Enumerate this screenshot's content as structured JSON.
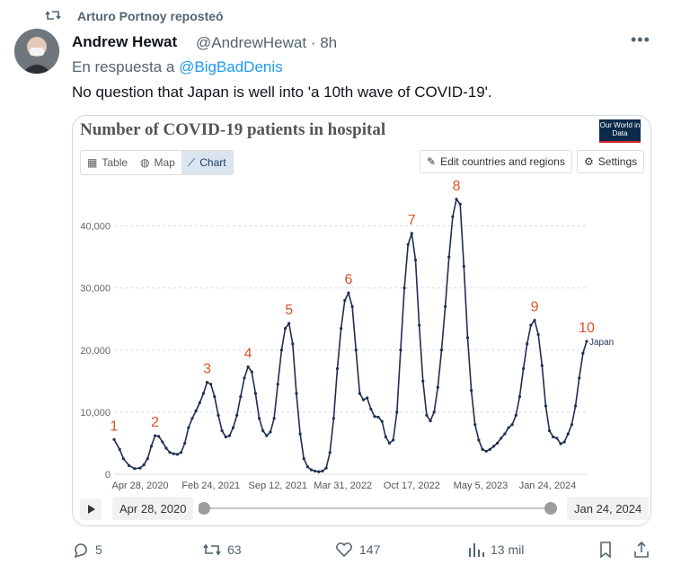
{
  "repost": {
    "label": "Arturo Portnoy reposteó"
  },
  "tweet": {
    "name": "Andrew Hewat",
    "handle": "@AndrewHewat · 8h",
    "reply_prefix": "En respuesta a",
    "reply_to": "@BigBadDenis",
    "text": "No question that Japan is well into 'a 10th wave of COVID-19'."
  },
  "card": {
    "title": "Number of COVID-19 patients in hospital",
    "logo": "Our World in Data",
    "tabs": [
      "Table",
      "Map",
      "Chart"
    ],
    "active_tab": "Chart",
    "edit_button": "Edit countries and regions",
    "settings_button": "Settings",
    "start_date": "Apr 28, 2020",
    "end_date": "Jan 24, 2024"
  },
  "actions": {
    "replies": "5",
    "reposts": "63",
    "likes": "147",
    "views": "13 mil"
  },
  "colors": {
    "line": "#1f2f52",
    "wave_label": "#d9532b",
    "link": "#1d9bf0"
  },
  "chart_data": {
    "type": "line",
    "title": "Number of COVID-19 patients in hospital",
    "series": [
      {
        "name": "Japan",
        "points": [
          [
            0,
            5600
          ],
          [
            0.3,
            4000
          ],
          [
            0.5,
            2500
          ],
          [
            0.8,
            1400
          ],
          [
            1.1,
            900
          ],
          [
            1.4,
            1000
          ],
          [
            1.6,
            1500
          ],
          [
            1.8,
            2500
          ],
          [
            2,
            4500
          ],
          [
            2.2,
            6200
          ],
          [
            2.4,
            6100
          ],
          [
            2.6,
            5200
          ],
          [
            2.8,
            4200
          ],
          [
            3,
            3500
          ],
          [
            3.2,
            3300
          ],
          [
            3.4,
            3200
          ],
          [
            3.6,
            3500
          ],
          [
            3.8,
            5000
          ],
          [
            4,
            7500
          ],
          [
            4.2,
            9000
          ],
          [
            4.4,
            10200
          ],
          [
            4.6,
            11500
          ],
          [
            4.8,
            13000
          ],
          [
            5,
            14800
          ],
          [
            5.2,
            14500
          ],
          [
            5.4,
            12500
          ],
          [
            5.6,
            9500
          ],
          [
            5.8,
            7000
          ],
          [
            6,
            6000
          ],
          [
            6.2,
            6200
          ],
          [
            6.4,
            7500
          ],
          [
            6.6,
            9500
          ],
          [
            6.8,
            12500
          ],
          [
            7,
            15500
          ],
          [
            7.2,
            17300
          ],
          [
            7.4,
            16500
          ],
          [
            7.6,
            13000
          ],
          [
            7.8,
            9000
          ],
          [
            8,
            7000
          ],
          [
            8.2,
            6200
          ],
          [
            8.4,
            6800
          ],
          [
            8.6,
            9000
          ],
          [
            8.8,
            14500
          ],
          [
            9,
            20000
          ],
          [
            9.2,
            23500
          ],
          [
            9.4,
            24300
          ],
          [
            9.6,
            21000
          ],
          [
            9.8,
            13000
          ],
          [
            10,
            6500
          ],
          [
            10.2,
            2500
          ],
          [
            10.4,
            1200
          ],
          [
            10.6,
            700
          ],
          [
            10.8,
            500
          ],
          [
            11,
            400
          ],
          [
            11.2,
            500
          ],
          [
            11.4,
            1000
          ],
          [
            11.6,
            3500
          ],
          [
            11.8,
            9000
          ],
          [
            12,
            17000
          ],
          [
            12.2,
            23500
          ],
          [
            12.4,
            28000
          ],
          [
            12.6,
            29200
          ],
          [
            12.8,
            27000
          ],
          [
            13,
            20000
          ],
          [
            13.2,
            13000
          ],
          [
            13.4,
            12000
          ],
          [
            13.6,
            12300
          ],
          [
            13.8,
            10500
          ],
          [
            14,
            9300
          ],
          [
            14.2,
            9200
          ],
          [
            14.4,
            8500
          ],
          [
            14.6,
            6000
          ],
          [
            14.8,
            5000
          ],
          [
            15,
            5500
          ],
          [
            15.2,
            10000
          ],
          [
            15.4,
            20000
          ],
          [
            15.6,
            30000
          ],
          [
            15.8,
            37000
          ],
          [
            16,
            38800
          ],
          [
            16.2,
            34500
          ],
          [
            16.4,
            24000
          ],
          [
            16.6,
            15000
          ],
          [
            16.8,
            9500
          ],
          [
            17,
            8600
          ],
          [
            17.2,
            10000
          ],
          [
            17.4,
            14000
          ],
          [
            17.6,
            20000
          ],
          [
            17.8,
            27000
          ],
          [
            18,
            35000
          ],
          [
            18.2,
            41500
          ],
          [
            18.4,
            44300
          ],
          [
            18.6,
            43500
          ],
          [
            18.8,
            33500
          ],
          [
            19,
            22000
          ],
          [
            19.2,
            13500
          ],
          [
            19.4,
            8000
          ],
          [
            19.6,
            5500
          ],
          [
            19.8,
            4000
          ],
          [
            20,
            3700
          ],
          [
            20.2,
            4000
          ],
          [
            20.4,
            4500
          ],
          [
            20.6,
            5000
          ],
          [
            20.8,
            5800
          ],
          [
            21,
            6500
          ],
          [
            21.2,
            7500
          ],
          [
            21.4,
            8000
          ],
          [
            21.6,
            9500
          ],
          [
            21.8,
            12500
          ],
          [
            22,
            17000
          ],
          [
            22.2,
            21000
          ],
          [
            22.4,
            24000
          ],
          [
            22.6,
            24800
          ],
          [
            22.8,
            22500
          ],
          [
            23,
            17500
          ],
          [
            23.2,
            11000
          ],
          [
            23.4,
            7000
          ],
          [
            23.6,
            6000
          ],
          [
            23.8,
            5800
          ],
          [
            24,
            4900
          ],
          [
            24.2,
            5200
          ],
          [
            24.4,
            6500
          ],
          [
            24.6,
            8000
          ],
          [
            24.8,
            11000
          ],
          [
            25,
            15500
          ],
          [
            25.2,
            19500
          ],
          [
            25.4,
            21400
          ]
        ]
      }
    ],
    "x_ticks": [
      "Apr 28, 2020",
      "Feb 24, 2021",
      "Sep 12, 2021",
      "Mar 31, 2022",
      "Oct 17, 2022",
      "May 5, 2023",
      "Jan 24, 2024"
    ],
    "y_ticks": [
      "0",
      "10,000",
      "20,000",
      "30,000",
      "40,000"
    ],
    "ylim": [
      0,
      45000
    ],
    "wave_labels": [
      {
        "label": "1",
        "x": 0,
        "y": 5600
      },
      {
        "label": "2",
        "x": 2.2,
        "y": 6200
      },
      {
        "label": "3",
        "x": 5,
        "y": 14800
      },
      {
        "label": "4",
        "x": 7.2,
        "y": 17300
      },
      {
        "label": "5",
        "x": 9.4,
        "y": 24300
      },
      {
        "label": "6",
        "x": 12.6,
        "y": 29200
      },
      {
        "label": "7",
        "x": 16,
        "y": 38800
      },
      {
        "label": "8",
        "x": 18.4,
        "y": 44300
      },
      {
        "label": "9",
        "x": 22.6,
        "y": 24800
      },
      {
        "label": "10",
        "x": 25.4,
        "y": 21400
      }
    ],
    "end_label": "Japan",
    "grid": true
  }
}
